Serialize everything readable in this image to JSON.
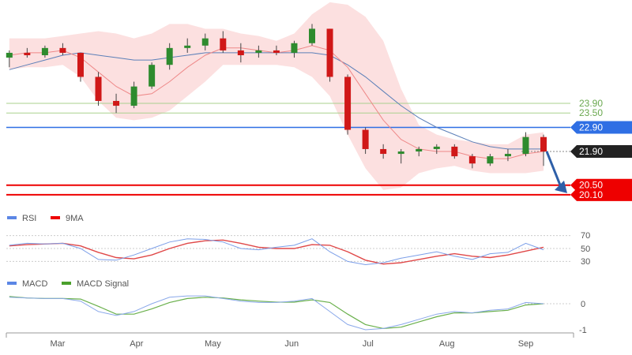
{
  "chart_data": {
    "type": "candlestick",
    "dates": [
      "Feb 10",
      "Feb 17",
      "Feb 24",
      "Mar 3",
      "Mar 10",
      "Mar 17",
      "Mar 24",
      "Mar 31",
      "Apr 7",
      "Apr 14",
      "Apr 21",
      "Apr 28",
      "May 5",
      "May 12",
      "May 19",
      "May 26",
      "Jun 2",
      "Jun 9",
      "Jun 16",
      "Jun 23",
      "Jun 30",
      "Jul 7",
      "Jul 14",
      "Jul 21",
      "Jul 28",
      "Aug 4",
      "Aug 11",
      "Aug 18",
      "Aug 25",
      "Sep 1",
      "Sep 8"
    ],
    "ohlc": [
      [
        25.8,
        26.1,
        25.4,
        26.0
      ],
      [
        26.0,
        26.2,
        25.8,
        25.9
      ],
      [
        25.9,
        26.3,
        25.8,
        26.2
      ],
      [
        26.2,
        26.4,
        25.9,
        26.0
      ],
      [
        26.0,
        26.0,
        24.8,
        25.0
      ],
      [
        25.0,
        25.2,
        23.8,
        24.0
      ],
      [
        24.0,
        24.3,
        23.5,
        23.8
      ],
      [
        23.8,
        24.8,
        23.7,
        24.6
      ],
      [
        24.6,
        25.6,
        24.5,
        25.5
      ],
      [
        25.5,
        26.4,
        25.3,
        26.2
      ],
      [
        26.2,
        26.6,
        26.0,
        26.3
      ],
      [
        26.3,
        26.8,
        26.1,
        26.6
      ],
      [
        26.6,
        26.9,
        26.0,
        26.1
      ],
      [
        26.1,
        26.4,
        25.6,
        25.9
      ],
      [
        26.0,
        26.3,
        25.8,
        26.1
      ],
      [
        26.1,
        26.3,
        25.9,
        26.0
      ],
      [
        26.0,
        26.5,
        25.8,
        26.4
      ],
      [
        26.4,
        27.2,
        26.3,
        27.0
      ],
      [
        27.0,
        27.0,
        24.8,
        25.0
      ],
      [
        25.0,
        25.1,
        22.6,
        22.8
      ],
      [
        22.8,
        22.9,
        21.8,
        22.0
      ],
      [
        22.0,
        22.2,
        21.6,
        21.8
      ],
      [
        21.8,
        22.0,
        21.4,
        21.9
      ],
      [
        21.9,
        22.1,
        21.7,
        22.0
      ],
      [
        22.0,
        22.2,
        21.8,
        22.1
      ],
      [
        22.1,
        22.2,
        21.6,
        21.7
      ],
      [
        21.7,
        21.8,
        21.2,
        21.4
      ],
      [
        21.4,
        21.8,
        21.3,
        21.7
      ],
      [
        21.7,
        22.0,
        21.5,
        21.8
      ],
      [
        21.8,
        22.7,
        21.7,
        22.5
      ],
      [
        22.5,
        22.6,
        21.3,
        21.9
      ]
    ],
    "ma_long": [
      25.3,
      25.5,
      25.7,
      25.9,
      26.0,
      25.9,
      25.8,
      25.7,
      25.7,
      25.8,
      25.9,
      26.0,
      26.0,
      26.0,
      26.0,
      26.0,
      26.0,
      26.0,
      25.9,
      25.5,
      25.0,
      24.4,
      23.8,
      23.3,
      22.9,
      22.6,
      22.3,
      22.1,
      22.0,
      22.0,
      22.0
    ],
    "ma_short": [
      25.9,
      26.0,
      26.0,
      26.1,
      25.8,
      25.2,
      24.6,
      24.2,
      24.3,
      24.8,
      25.4,
      25.9,
      26.2,
      26.2,
      26.1,
      26.0,
      26.1,
      26.3,
      26.1,
      25.4,
      24.3,
      23.2,
      22.4,
      22.0,
      21.9,
      21.9,
      21.7,
      21.6,
      21.6,
      21.8,
      21.9
    ],
    "band_upper": [
      26.6,
      26.6,
      26.6,
      26.7,
      26.8,
      26.9,
      26.8,
      26.6,
      26.8,
      27.2,
      27.2,
      27.0,
      27.0,
      26.8,
      26.7,
      26.5,
      26.8,
      27.6,
      28.1,
      28.0,
      27.5,
      26.5,
      24.5,
      23.0,
      22.6,
      22.4,
      22.3,
      22.2,
      22.2,
      22.6,
      22.7
    ],
    "band_lower": [
      25.3,
      25.4,
      25.4,
      25.5,
      25.0,
      24.0,
      23.3,
      23.2,
      23.3,
      23.6,
      24.2,
      24.8,
      25.5,
      25.5,
      25.5,
      25.5,
      25.4,
      25.0,
      24.2,
      22.6,
      21.2,
      20.3,
      20.4,
      21.0,
      21.2,
      21.3,
      21.1,
      21.0,
      21.0,
      21.0,
      21.1
    ],
    "levels": [
      {
        "value": "23.90",
        "color": "#6aa84f",
        "style": "line-green"
      },
      {
        "value": "23.50",
        "color": "#6aa84f",
        "style": "line-green"
      },
      {
        "value": "22.90",
        "color": "#2f6fe4",
        "style": "tag"
      },
      {
        "value": "21.90",
        "color": "#222222",
        "style": "tag-dotted"
      },
      {
        "value": "20.50",
        "color": "#ee0000",
        "style": "tag"
      },
      {
        "value": "20.10",
        "color": "#ee0000",
        "style": "tag"
      }
    ],
    "forecast_arrow": {
      "from": 21.9,
      "to": 20.1,
      "color": "#2e5fa8"
    },
    "x_ticks": [
      {
        "label": "Mar",
        "date": "Mar 1"
      },
      {
        "label": "Apr",
        "date": "Apr 1"
      },
      {
        "label": "May",
        "date": "May 1"
      },
      {
        "label": "Jun",
        "date": "Jun 1"
      },
      {
        "label": "Jul",
        "date": "Jul 1"
      },
      {
        "label": "Aug",
        "date": "Aug 1"
      },
      {
        "label": "Sep",
        "date": "Sep 1"
      }
    ],
    "rsi": {
      "legend": [
        {
          "name": "RSI",
          "color": "#5b86e5"
        },
        {
          "name": "9MA",
          "color": "#ee0000"
        }
      ],
      "ticks": [
        "70",
        "50",
        "30"
      ],
      "rsi": [
        55,
        58,
        57,
        58,
        50,
        33,
        32,
        40,
        50,
        60,
        65,
        64,
        60,
        50,
        48,
        52,
        55,
        65,
        45,
        30,
        25,
        28,
        35,
        40,
        45,
        38,
        33,
        42,
        44,
        58,
        48
      ],
      "ma9": [
        54,
        56,
        57,
        58,
        54,
        44,
        36,
        34,
        40,
        50,
        58,
        62,
        63,
        58,
        52,
        50,
        50,
        56,
        55,
        45,
        32,
        26,
        28,
        33,
        38,
        42,
        38,
        36,
        40,
        46,
        52
      ]
    },
    "macd": {
      "legend": [
        {
          "name": "MACD",
          "color": "#5b86e5"
        },
        {
          "name": "MACD Signal",
          "color": "#4aa02c"
        }
      ],
      "ticks": [
        "0",
        "-1"
      ],
      "macd": [
        0.25,
        0.22,
        0.2,
        0.2,
        0.1,
        -0.3,
        -0.45,
        -0.3,
        0,
        0.25,
        0.3,
        0.3,
        0.2,
        0.1,
        0.05,
        0.05,
        0.1,
        0.2,
        -0.3,
        -0.8,
        -1.0,
        -0.95,
        -0.8,
        -0.6,
        -0.4,
        -0.3,
        -0.35,
        -0.25,
        -0.2,
        0.05,
        0
      ],
      "signal": [
        0.28,
        0.22,
        0.2,
        0.2,
        0.18,
        -0.1,
        -0.4,
        -0.4,
        -0.2,
        0.05,
        0.2,
        0.25,
        0.22,
        0.15,
        0.1,
        0.06,
        0.06,
        0.15,
        0.05,
        -0.4,
        -0.8,
        -0.95,
        -0.9,
        -0.7,
        -0.5,
        -0.35,
        -0.35,
        -0.3,
        -0.25,
        -0.05,
        0
      ]
    }
  }
}
